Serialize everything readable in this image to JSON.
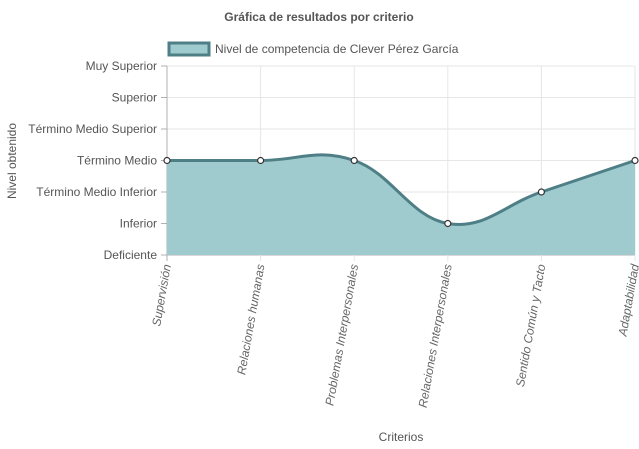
{
  "chart_data": {
    "type": "area",
    "title": "Gráfica de resultados por criterio",
    "xlabel": "Criterios",
    "ylabel": "Nivel obtenido",
    "categories": [
      "Supervisión",
      "Relaciones humanas",
      "Problemas Interpersonales",
      "Relaciones Interpersonales",
      "Sentido Común y Tacto",
      "Adaptabilidad"
    ],
    "y_levels": [
      "Deficiente",
      "Inferior",
      "Término Medio Inferior",
      "Término Medio",
      "Término Medio Superior",
      "Superior",
      "Muy Superior"
    ],
    "ylim": [
      0,
      6
    ],
    "series": [
      {
        "name": "Nivel de competencia de Clever Pérez García",
        "values": [
          3,
          3,
          3,
          1,
          2,
          3
        ]
      }
    ],
    "legend_position": "top",
    "grid": true,
    "colors": {
      "fill": "#9fcbce",
      "line": "#4f7f86",
      "point_fill": "#ffffff",
      "point_stroke": "#333333"
    }
  }
}
